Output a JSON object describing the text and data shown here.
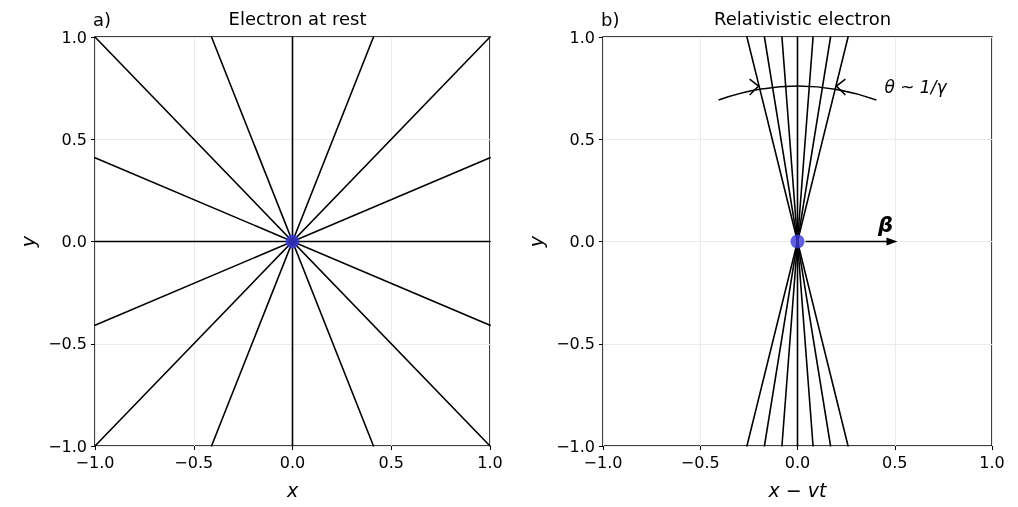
{
  "chart_data": [
    {
      "type": "line",
      "title": "Electron at rest",
      "xlabel": "x",
      "ylabel": "y",
      "annotations": [
        "a)"
      ],
      "xlim": [
        -1,
        1
      ],
      "ylim": [
        -1,
        1
      ],
      "xticks": [
        {
          "value": -1,
          "label": "−1.0"
        },
        {
          "value": -0.5,
          "label": "−0.5"
        },
        {
          "value": 0,
          "label": "0.0"
        },
        {
          "value": 0.5,
          "label": "0.5"
        },
        {
          "value": 1,
          "label": "1.0"
        }
      ],
      "yticks": [
        {
          "value": -1,
          "label": "−1.0"
        },
        {
          "value": -0.5,
          "label": "−0.5"
        },
        {
          "value": 0,
          "label": "0.0"
        },
        {
          "value": 0.5,
          "label": "0.5"
        },
        {
          "value": 1,
          "label": "1.0"
        }
      ],
      "grid": true,
      "marker": "none",
      "line_style": "solid",
      "series": [
        {
          "color": "#000000",
          "x": [
            -1,
            1
          ],
          "values": [
            0,
            0
          ]
        },
        {
          "color": "#000000",
          "x": [
            -1,
            1
          ],
          "values": [
            -0.41,
            0.41
          ]
        },
        {
          "color": "#000000",
          "x": [
            -1,
            1
          ],
          "values": [
            -1,
            1
          ]
        },
        {
          "color": "#000000",
          "x": [
            -0.41,
            0.41
          ],
          "values": [
            -1,
            1
          ]
        },
        {
          "color": "#000000",
          "x": [
            0,
            0
          ],
          "values": [
            -1,
            1
          ]
        },
        {
          "color": "#000000",
          "x": [
            -0.41,
            0.41
          ],
          "values": [
            1,
            -1
          ]
        },
        {
          "color": "#000000",
          "x": [
            -1,
            1
          ],
          "values": [
            1,
            -1
          ]
        },
        {
          "color": "#000000",
          "x": [
            -1,
            1
          ],
          "values": [
            0.41,
            -0.41
          ]
        },
        {
          "type": "scatter",
          "marker": "circle",
          "color": "#3a3ad8",
          "x": [
            0
          ],
          "values": [
            0
          ]
        }
      ]
    },
    {
      "type": "line",
      "title": "Relativistic electron",
      "xlabel": "x − vt",
      "ylabel": "y",
      "annotations": [
        "b)",
        {
          "text": "β",
          "x": 0,
          "y": 0
        },
        {
          "text": "θ ~ 1/γ",
          "x": 0.2,
          "y": 0.76
        }
      ],
      "xlim": [
        -1,
        1
      ],
      "ylim": [
        -1,
        1
      ],
      "xticks": [
        {
          "value": -1,
          "label": "−1.0"
        },
        {
          "value": -0.5,
          "label": "−0.5"
        },
        {
          "value": 0,
          "label": "0.0"
        },
        {
          "value": 0.5,
          "label": "0.5"
        },
        {
          "value": 1,
          "label": "1.0"
        }
      ],
      "yticks": [
        {
          "value": -1,
          "label": "−1.0"
        },
        {
          "value": -0.5,
          "label": "−0.5"
        },
        {
          "value": 0,
          "label": "0.0"
        },
        {
          "value": 0.5,
          "label": "0.5"
        },
        {
          "value": 1,
          "label": "1.0"
        }
      ],
      "grid": true,
      "marker": "none",
      "line_style": "solid",
      "series": [
        {
          "color": "#000000",
          "x": [
            -0.26,
            0.26
          ],
          "values": [
            1,
            -1
          ]
        },
        {
          "color": "#000000",
          "x": [
            -0.17,
            0.17
          ],
          "values": [
            1,
            -1
          ]
        },
        {
          "color": "#000000",
          "x": [
            -0.08,
            0.08
          ],
          "values": [
            1,
            -1
          ]
        },
        {
          "color": "#000000",
          "x": [
            0,
            0
          ],
          "values": [
            1,
            -1
          ]
        },
        {
          "color": "#000000",
          "x": [
            0.08,
            -0.08
          ],
          "values": [
            1,
            -1
          ]
        },
        {
          "color": "#000000",
          "x": [
            0.17,
            -0.17
          ],
          "values": [
            1,
            -1
          ]
        },
        {
          "color": "#000000",
          "x": [
            0.26,
            -0.26
          ],
          "values": [
            1,
            -1
          ]
        },
        {
          "type": "scatter",
          "marker": "circle",
          "color": "#3a3ad8",
          "x": [
            0
          ],
          "values": [
            0
          ]
        }
      ]
    }
  ]
}
